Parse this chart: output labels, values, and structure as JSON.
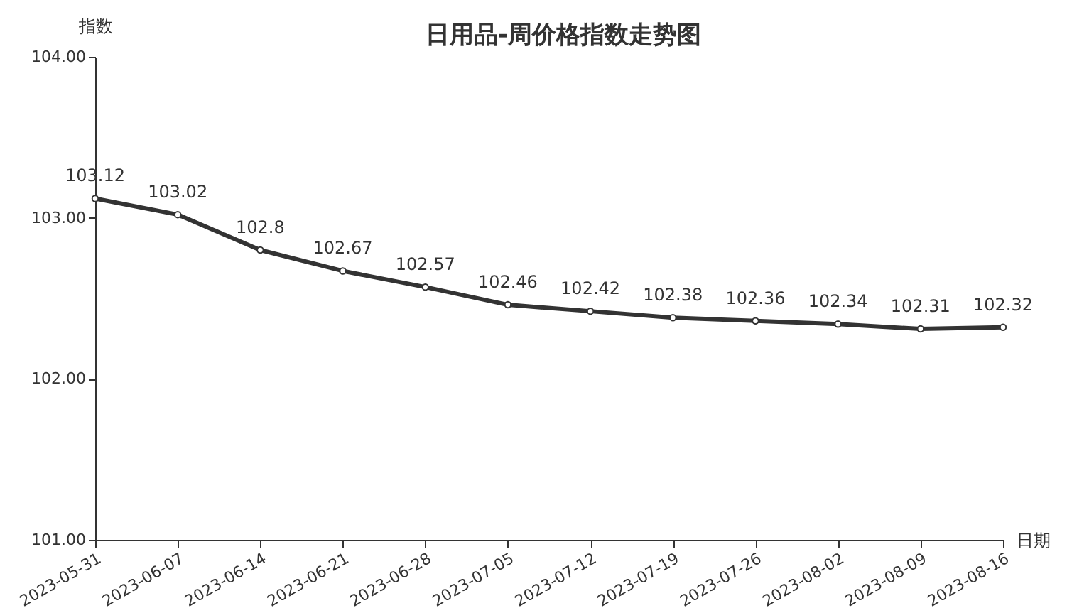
{
  "chart_data": {
    "type": "line",
    "title": "日用品-周价格指数走势图",
    "xlabel": "日期",
    "ylabel": "指数",
    "categories": [
      "2023-05-31",
      "2023-06-07",
      "2023-06-14",
      "2023-06-21",
      "2023-06-28",
      "2023-07-05",
      "2023-07-12",
      "2023-07-19",
      "2023-07-26",
      "2023-08-02",
      "2023-08-09",
      "2023-08-16"
    ],
    "series": [
      {
        "color": "#333333",
        "values": [
          103.12,
          103.02,
          102.8,
          102.67,
          102.57,
          102.46,
          102.42,
          102.38,
          102.36,
          102.34,
          102.31,
          102.32
        ]
      }
    ],
    "ylim": [
      101,
      104
    ],
    "yticks": [
      {
        "value": 101,
        "label": "101.00"
      },
      {
        "value": 102,
        "label": "102.00"
      },
      {
        "value": 103,
        "label": "103.00"
      },
      {
        "value": 104,
        "label": "104.00"
      }
    ],
    "grid": false,
    "legend": false,
    "marker": "circle",
    "line_style": "solid",
    "data_labels": true
  }
}
